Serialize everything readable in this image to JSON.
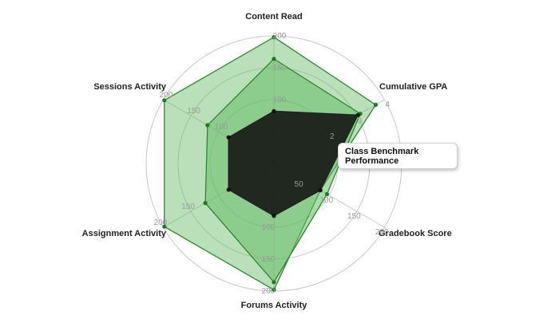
{
  "chart_data": {
    "type": "radar",
    "axes": [
      {
        "label": "Content Read",
        "ticks": [
          "100",
          "150",
          "200"
        ]
      },
      {
        "label": "Cumulative GPA",
        "ticks": [
          "2",
          "3",
          "4"
        ]
      },
      {
        "label": "Gradebook Score",
        "ticks": [
          "50",
          "100",
          "150",
          "200"
        ]
      },
      {
        "label": "Forums Activity",
        "ticks": [
          "100",
          "150",
          "200"
        ]
      },
      {
        "label": "Assignment Activity",
        "ticks": [
          "150",
          "200"
        ]
      },
      {
        "label": "Sessions Activity",
        "ticks": [
          "100",
          "150",
          "200"
        ]
      }
    ],
    "series": [
      {
        "values_fraction": [
          0.99,
          0.92,
          0.42,
          0.99,
          0.99,
          0.99
        ],
        "color": "#66bb66",
        "fill_opacity": 0.45
      },
      {
        "values_fraction": [
          0.82,
          0.78,
          0.48,
          0.93,
          0.62,
          0.6
        ],
        "color": "#66bb66",
        "fill_opacity": 0.55
      },
      {
        "values_fraction": [
          0.41,
          0.76,
          0.42,
          0.41,
          0.41,
          0.41
        ],
        "color": "#111111",
        "fill_opacity": 0.88
      }
    ],
    "grid": true
  },
  "tooltip": {
    "line1": "Class Benchmark",
    "line2": "Performance"
  }
}
